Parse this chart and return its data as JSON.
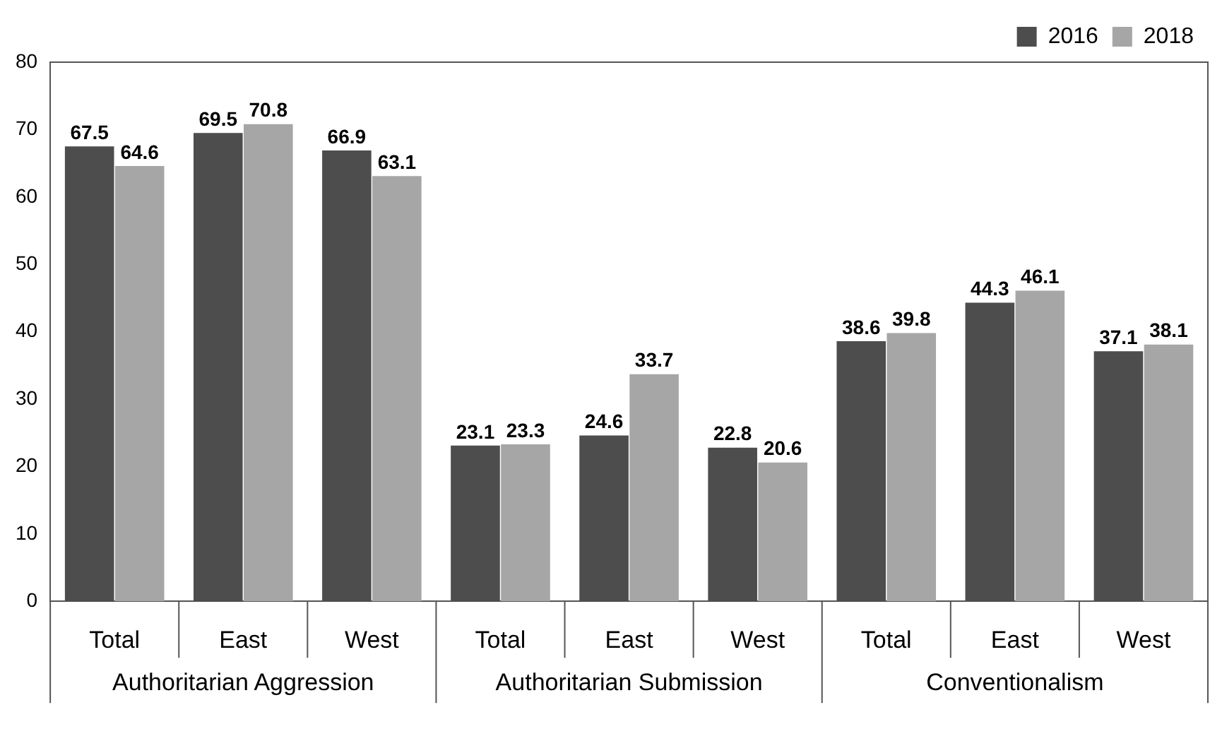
{
  "chart_data": {
    "type": "bar",
    "categories": [
      "Total",
      "East",
      "West",
      "Total",
      "East",
      "West",
      "Total",
      "East",
      "West"
    ],
    "series": [
      {
        "name": "2016",
        "color": "#4d4d4d",
        "values": [
          67.5,
          69.5,
          66.9,
          23.1,
          24.6,
          22.8,
          38.6,
          44.3,
          37.1
        ]
      },
      {
        "name": "2018",
        "color": "#a6a6a6",
        "values": [
          64.6,
          70.8,
          63.1,
          23.3,
          33.7,
          20.6,
          39.8,
          46.1,
          38.1
        ]
      }
    ],
    "annotations": [
      "Authoritarian Aggression",
      "Authoritarian Submission",
      "Conventionalism"
    ],
    "ylim": [
      0,
      80
    ],
    "yticks": [
      0,
      10,
      20,
      30,
      40,
      50,
      60,
      70,
      80
    ],
    "grid": false,
    "legend": "top right",
    "data_labels": true
  }
}
